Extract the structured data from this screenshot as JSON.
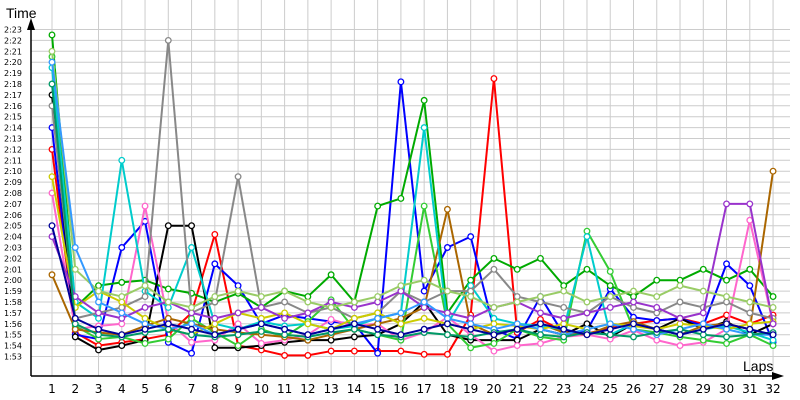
{
  "chart_data": {
    "type": "line",
    "ylabel": "Time",
    "xlabel": "Laps",
    "y_ticks": [
      "1:53",
      "1:54",
      "1:55",
      "1:56",
      "1:57",
      "1:58",
      "1:59",
      "2:00",
      "2:01",
      "2:02",
      "2:03",
      "2:04",
      "2:05",
      "2:06",
      "2:07",
      "2:08",
      "2:09",
      "2:10",
      "2:11",
      "2:12",
      "2:13",
      "2:14",
      "2:15",
      "2:16",
      "2:17",
      "2:18",
      "2:19",
      "2:20",
      "2:21",
      "2:22",
      "2:23"
    ],
    "x": [
      1,
      2,
      3,
      4,
      5,
      6,
      7,
      8,
      9,
      10,
      11,
      12,
      13,
      14,
      15,
      16,
      17,
      18,
      19,
      20,
      21,
      22,
      23,
      24,
      25,
      26,
      27,
      28,
      29,
      30,
      31,
      32
    ],
    "ylim_seconds": [
      113,
      143
    ],
    "grid": true,
    "series": [
      {
        "color": "#ff0000",
        "values": [
          132.0,
          115.2,
          114.0,
          114.3,
          114.6,
          115.0,
          117.0,
          124.2,
          114.0,
          113.6,
          113.1,
          113.1,
          113.5,
          113.5,
          113.5,
          113.5,
          113.2,
          113.2,
          116.8,
          138.5,
          115.2,
          116.4,
          115.3,
          115.1,
          115.6,
          116.0,
          116.3,
          116.5,
          116.0,
          116.8,
          116.0,
          116.8
        ]
      },
      {
        "color": "#0000ff",
        "values": [
          134.0,
          115.0,
          114.6,
          123.0,
          125.4,
          114.3,
          113.3,
          121.5,
          119.5,
          116.0,
          116.8,
          116.5,
          116.2,
          116.0,
          113.3,
          138.2,
          119.0,
          123.0,
          124.0,
          115.5,
          114.6,
          118.5,
          115.0,
          115.4,
          119.2,
          116.6,
          116.3,
          116.5,
          115.8,
          121.5,
          119.5,
          114.3
        ]
      },
      {
        "color": "#00aa00",
        "values": [
          142.5,
          117.5,
          119.5,
          119.8,
          120.0,
          119.2,
          118.8,
          118.0,
          118.8,
          117.5,
          119.0,
          118.5,
          120.5,
          118.0,
          126.8,
          127.5,
          136.5,
          117.0,
          120.0,
          122.0,
          121.0,
          122.0,
          119.5,
          121.0,
          119.5,
          118.5,
          120.0,
          120.0,
          121.0,
          120.0,
          121.0,
          118.5
        ]
      },
      {
        "color": "#000000",
        "values": [
          137.0,
          114.8,
          113.6,
          114.0,
          114.5,
          125.0,
          125.0,
          113.8,
          113.8,
          114.0,
          114.3,
          114.5,
          114.5,
          114.8,
          115.0,
          116.0,
          118.0,
          115.0,
          114.5,
          114.5,
          114.5,
          115.5,
          115.0,
          116.0,
          114.8,
          116.0,
          115.5,
          116.5,
          115.5,
          116.2,
          115.0,
          116.0
        ]
      },
      {
        "color": "#ff66cc",
        "values": [
          128.0,
          115.5,
          115.8,
          116.0,
          126.8,
          116.2,
          114.3,
          114.5,
          116.0,
          114.2,
          114.5,
          115.0,
          116.4,
          115.8,
          116.0,
          114.5,
          115.2,
          116.6,
          115.0,
          113.5,
          114.0,
          114.2,
          114.8,
          115.0,
          114.6,
          115.4,
          114.5,
          114.0,
          114.3,
          115.5,
          125.5,
          116.0
        ]
      },
      {
        "color": "#33cc33",
        "values": [
          140.5,
          115.8,
          114.6,
          114.8,
          114.2,
          114.6,
          116.5,
          115.2,
          114.0,
          115.5,
          114.8,
          116.2,
          118.2,
          115.5,
          115.0,
          114.5,
          126.8,
          116.0,
          113.8,
          114.2,
          115.5,
          114.8,
          114.5,
          124.5,
          120.8,
          115.5,
          115.2,
          114.8,
          114.5,
          114.2,
          115.0,
          114.0
        ]
      },
      {
        "color": "#aa6600",
        "values": [
          120.5,
          115.5,
          115.2,
          115.0,
          115.8,
          116.5,
          116.0,
          115.5,
          115.2,
          115.0,
          114.8,
          114.5,
          115.0,
          115.5,
          116.0,
          116.5,
          117.5,
          126.5,
          116.0,
          115.0,
          115.5,
          116.0,
          115.2,
          115.0,
          115.8,
          116.2,
          115.5,
          115.0,
          115.8,
          116.0,
          115.5,
          130.0
        ]
      },
      {
        "color": "#00cccc",
        "values": [
          139.5,
          118.0,
          116.5,
          131.0,
          119.0,
          117.5,
          123.0,
          116.0,
          115.5,
          116.2,
          115.8,
          116.0,
          115.5,
          115.8,
          116.5,
          117.0,
          134.0,
          116.0,
          119.5,
          116.5,
          116.0,
          115.8,
          115.5,
          124.0,
          115.0,
          116.0,
          115.5,
          115.0,
          115.5,
          115.8,
          115.2,
          114.5
        ]
      },
      {
        "color": "#888888",
        "values": [
          136.0,
          116.5,
          117.0,
          117.5,
          118.5,
          142.0,
          117.0,
          118.0,
          129.5,
          117.5,
          118.0,
          117.0,
          117.5,
          116.5,
          117.0,
          119.0,
          118.0,
          119.0,
          119.0,
          121.0,
          118.5,
          118.0,
          117.5,
          117.0,
          118.5,
          117.5,
          117.0,
          118.0,
          117.5,
          118.0,
          117.0,
          116.5
        ]
      },
      {
        "color": "#cccc00",
        "values": [
          129.5,
          117.5,
          119.0,
          118.0,
          116.5,
          115.5,
          115.0,
          116.0,
          117.0,
          116.5,
          117.0,
          116.0,
          115.5,
          116.5,
          117.0,
          116.0,
          116.5,
          116.0,
          115.5,
          116.0,
          115.8,
          115.5,
          116.0,
          115.5,
          116.0,
          115.8,
          115.5,
          116.0,
          115.8,
          115.5,
          116.0,
          116.2
        ]
      },
      {
        "color": "#9933cc",
        "values": [
          124.0,
          118.5,
          117.0,
          116.5,
          117.5,
          118.0,
          117.0,
          116.5,
          117.0,
          117.5,
          116.5,
          117.0,
          118.0,
          117.5,
          118.0,
          119.0,
          117.5,
          117.0,
          116.5,
          117.5,
          118.0,
          117.0,
          116.5,
          117.0,
          117.5,
          118.0,
          117.5,
          116.5,
          117.0,
          127.0,
          127.0,
          116.0
        ]
      },
      {
        "color": "#99cc66",
        "values": [
          141.0,
          121.0,
          119.0,
          118.5,
          119.5,
          118.0,
          117.5,
          118.5,
          119.0,
          118.5,
          119.0,
          118.0,
          117.5,
          118.0,
          118.5,
          119.5,
          120.0,
          119.0,
          118.5,
          117.5,
          118.0,
          118.5,
          119.0,
          118.0,
          118.5,
          119.0,
          118.5,
          119.5,
          119.0,
          118.5,
          118.0,
          117.5
        ]
      },
      {
        "color": "#3399ff",
        "values": [
          140.0,
          123.0,
          118.0,
          117.0,
          116.0,
          115.5,
          116.0,
          115.0,
          115.5,
          116.0,
          115.5,
          115.0,
          115.5,
          116.0,
          116.5,
          117.0,
          118.0,
          116.5,
          116.0,
          115.5,
          116.0,
          115.5,
          115.0,
          115.5,
          116.0,
          115.5,
          115.0,
          115.5,
          116.0,
          115.5,
          115.0,
          115.0
        ]
      },
      {
        "color": "#009966",
        "values": [
          138.0,
          116.0,
          115.0,
          114.8,
          115.2,
          115.5,
          115.0,
          114.8,
          115.0,
          115.3,
          115.0,
          114.8,
          115.2,
          115.5,
          115.0,
          114.8,
          115.2,
          115.0,
          114.8,
          115.2,
          115.5,
          115.0,
          114.8,
          115.2,
          115.0,
          114.8,
          115.2,
          115.5,
          115.0,
          114.8,
          115.0,
          115.2
        ]
      },
      {
        "color": "#000099",
        "values": [
          125.0,
          116.5,
          115.5,
          115.0,
          115.5,
          116.0,
          115.5,
          115.0,
          115.5,
          116.0,
          115.5,
          115.0,
          115.5,
          116.0,
          115.5,
          115.0,
          115.5,
          116.0,
          115.5,
          115.0,
          115.5,
          116.0,
          115.5,
          115.0,
          115.5,
          116.0,
          115.5,
          115.0,
          115.5,
          116.0,
          115.5,
          115.0
        ]
      }
    ]
  }
}
